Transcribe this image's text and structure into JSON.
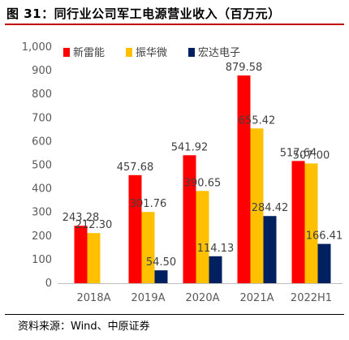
{
  "title": "图 31：同行业公司军工电源营业收入（百万元）",
  "source": "资料来源：Wind、中原证券",
  "chart_data": {
    "type": "bar",
    "categories": [
      "2018A",
      "2019A",
      "2020A",
      "2021A",
      "2022H1"
    ],
    "series": [
      {
        "name": "新雷能",
        "color": "#ff0000",
        "values": [
          243.28,
          457.68,
          541.92,
          879.58,
          517.64
        ],
        "labels": [
          "243.28",
          "457.68",
          "541.92",
          "879.58",
          "517.64"
        ]
      },
      {
        "name": "振华微",
        "color": "#ffc000",
        "values": [
          212.3,
          301.76,
          390.65,
          655.42,
          507.0
        ],
        "labels": [
          "212.30",
          "301.76",
          "390.65",
          "655.42",
          "507.00"
        ]
      },
      {
        "name": "宏达电子",
        "color": "#002060",
        "values": [
          null,
          54.5,
          114.13,
          284.42,
          166.41
        ],
        "labels": [
          "",
          "54.50",
          "114.13",
          "284.42",
          "166.41"
        ]
      }
    ],
    "yticks": [
      "0",
      "100",
      "200",
      "300",
      "400",
      "500",
      "600",
      "700",
      "800",
      "900",
      "1,000"
    ],
    "ylim": [
      0,
      1000
    ],
    "grid": false,
    "legend_position": "top-center"
  }
}
